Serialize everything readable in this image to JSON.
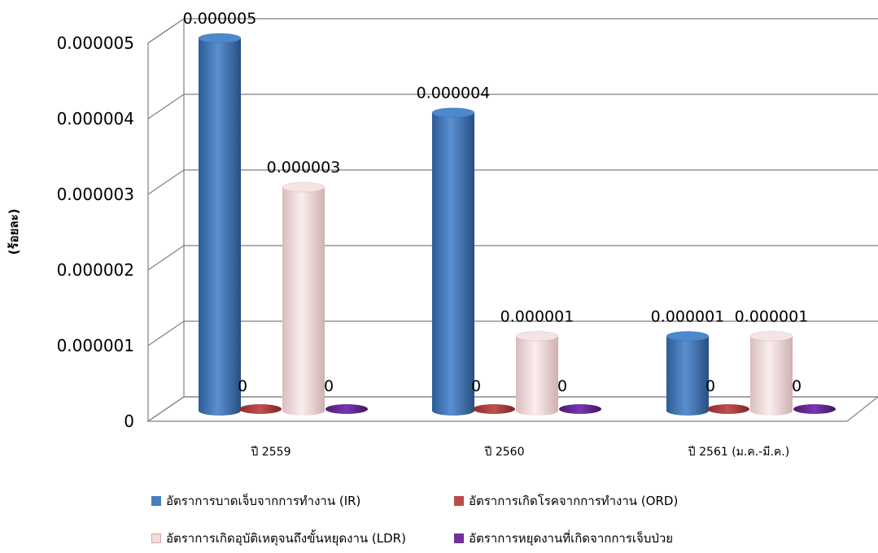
{
  "chart_data": {
    "type": "bar",
    "title": "",
    "xlabel": "",
    "ylabel": "(ร้อยละ)",
    "ylim": [
      0,
      5e-06
    ],
    "yticks": [
      "0",
      "0.000001",
      "0.000002",
      "0.000003",
      "0.000004",
      "0.000005"
    ],
    "categories": [
      "ปี 2559",
      "ปี 2560",
      "ปี 2561 (ม.ค.-มี.ค.)"
    ],
    "series": [
      {
        "name": "อัตราการบาดเจ็บจากการทำงาน (IR)",
        "values": [
          5e-06,
          4e-06,
          1e-06
        ],
        "labels": [
          "0.000005",
          "0.000004",
          "0.000001"
        ],
        "color": "#4a7ebb"
      },
      {
        "name": "อัตราการเกิดโรคจากการทำงาน (ORD)",
        "values": [
          0,
          0,
          0
        ],
        "labels": [
          "0",
          "0",
          "0"
        ],
        "color": "#be4b48"
      },
      {
        "name": "อัตราการเกิดอุบัติเหตุจนถึงขั้นหยุดงาน (LDR)",
        "values": [
          3e-06,
          1e-06,
          1e-06
        ],
        "labels": [
          "0.000003",
          "0.000001",
          "0.000001"
        ],
        "color": "#f2dcdb"
      },
      {
        "name": "อัตราการหยุดงานที่เกิดจากการเจ็บป่วย",
        "values": [
          0,
          0,
          0
        ],
        "labels": [
          "0",
          "0",
          "0"
        ],
        "color": "#7030a0"
      }
    ],
    "grid": true,
    "legend_position": "bottom",
    "style": "3d-cylinder"
  }
}
